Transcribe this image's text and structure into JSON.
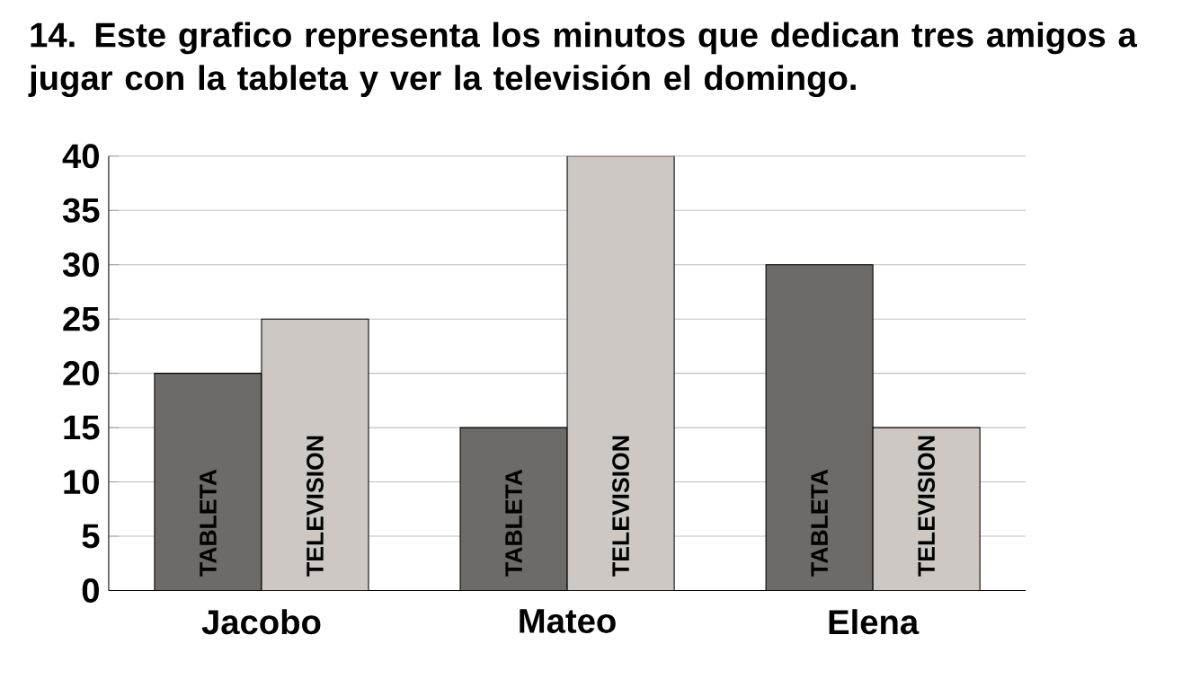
{
  "chart_data": {
    "type": "bar",
    "title": "14. Este grafico representa los minutos que dedican tres amigos a jugar con la tableta y ver la televisión el domingo.",
    "categories": [
      "Jacobo",
      "Mateo",
      "Elena"
    ],
    "series": [
      {
        "name": "TABLETA",
        "color": "#6e6a68",
        "values": [
          20,
          15,
          30
        ]
      },
      {
        "name": "TELEVISION",
        "color": "#cdc8c4",
        "values": [
          25,
          40,
          15
        ]
      }
    ],
    "ylim": [
      0,
      40
    ],
    "yticks": [
      0,
      5,
      10,
      15,
      20,
      25,
      30,
      35,
      40
    ],
    "grid": "y"
  }
}
